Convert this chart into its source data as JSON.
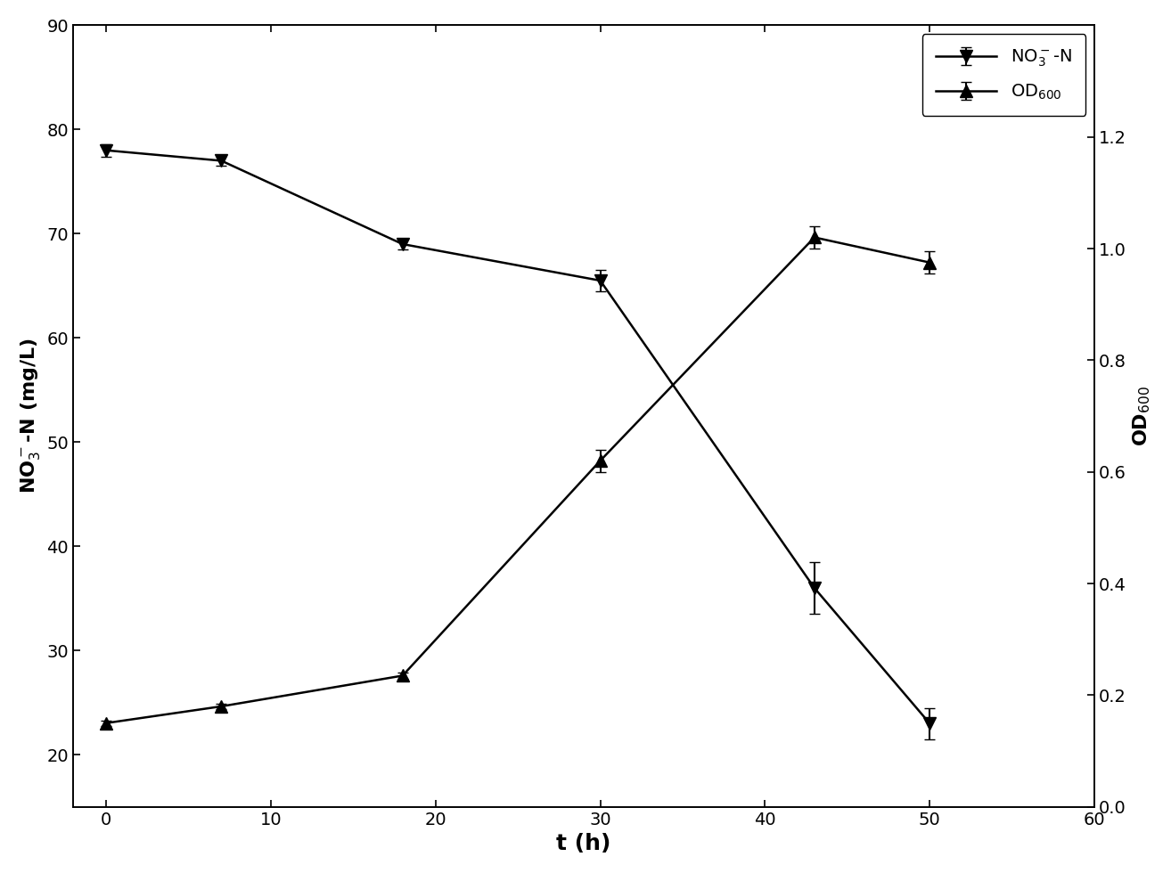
{
  "x": [
    0,
    7,
    18,
    30,
    43,
    50
  ],
  "no3_y": [
    78.0,
    77.0,
    69.0,
    65.5,
    36.0,
    23.0
  ],
  "no3_yerr": [
    0.6,
    0.5,
    0.5,
    1.0,
    2.5,
    1.5
  ],
  "od_y": [
    0.15,
    0.18,
    0.235,
    0.62,
    1.02,
    0.975
  ],
  "od_yerr": [
    0.005,
    0.005,
    0.005,
    0.02,
    0.02,
    0.02
  ],
  "xlabel": "t (h)",
  "ylabel_left": "NO$_3^-$-N (mg/L)",
  "ylabel_right": "OD$_{600}$",
  "legend_no3": "NO$_3^-$-N",
  "legend_od": "OD$_{600}$",
  "xlim": [
    -2,
    60
  ],
  "ylim_left": [
    15,
    90
  ],
  "ylim_right": [
    0.0,
    1.4
  ],
  "yticks_left": [
    20,
    30,
    40,
    50,
    60,
    70,
    80,
    90
  ],
  "yticks_right": [
    0.0,
    0.2,
    0.4,
    0.6,
    0.8,
    1.0,
    1.2
  ],
  "xticks": [
    0,
    10,
    20,
    30,
    40,
    50,
    60
  ],
  "color": "#000000",
  "linewidth": 1.8,
  "markersize": 10,
  "capsize": 4,
  "elinewidth": 1.5,
  "xlabel_fontsize": 18,
  "ylabel_fontsize": 16,
  "tick_labelsize": 14,
  "legend_fontsize": 14
}
